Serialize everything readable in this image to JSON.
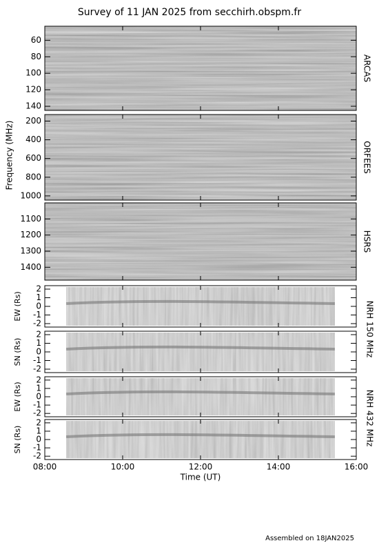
{
  "title": "Survey of 11 JAN 2025 from secchirh.obspm.fr",
  "xlabel": "Time (UT)",
  "freq_label": "Frequency (MHz)",
  "footer": "Assembled on  18JAN2025",
  "receivers": [
    "NRH 150 MHz",
    "NRH 432 MHz"
  ],
  "xlim": [
    8,
    16
  ],
  "xticks": [
    {
      "value": 8,
      "label": "08:00"
    },
    {
      "value": 10,
      "label": "10:00"
    },
    {
      "value": 12,
      "label": "12:00"
    },
    {
      "value": 14,
      "label": "14:00"
    },
    {
      "value": 16,
      "label": "16:00"
    }
  ],
  "chart_data": [
    {
      "type": "spectrogram",
      "panel_label": "ARCAS",
      "ylim": [
        43,
        145
      ],
      "y_inverted": true,
      "yticks": [
        60,
        80,
        100,
        120,
        140
      ]
    },
    {
      "type": "spectrogram",
      "panel_label": "ORFEES",
      "ylim": [
        130,
        1045
      ],
      "y_inverted": true,
      "yticks": [
        200,
        400,
        600,
        800,
        1000
      ]
    },
    {
      "type": "spectrogram",
      "panel_label": "HSRS",
      "ylim": [
        1000,
        1480
      ],
      "y_inverted": true,
      "yticks": [
        1100,
        1200,
        1300,
        1400
      ]
    },
    {
      "type": "radioheliograph",
      "ylabel": "EW (Rs)",
      "ylim": [
        -2.4,
        2.4
      ],
      "yticks": [
        2,
        1,
        0,
        -1,
        -2
      ]
    },
    {
      "type": "radioheliograph",
      "ylabel": "SN (Rs)",
      "ylim": [
        -2.4,
        2.4
      ],
      "yticks": [
        2,
        1,
        0,
        -1,
        -2
      ]
    },
    {
      "type": "radioheliograph",
      "ylabel": "EW (Rs)",
      "ylim": [
        -2.4,
        2.4
      ],
      "yticks": [
        2,
        1,
        0,
        -1,
        -2
      ]
    },
    {
      "type": "radioheliograph",
      "ylabel": "SN (Rs)",
      "ylim": [
        -2.4,
        2.4
      ],
      "yticks": [
        2,
        1,
        0,
        -1,
        -2
      ]
    }
  ]
}
